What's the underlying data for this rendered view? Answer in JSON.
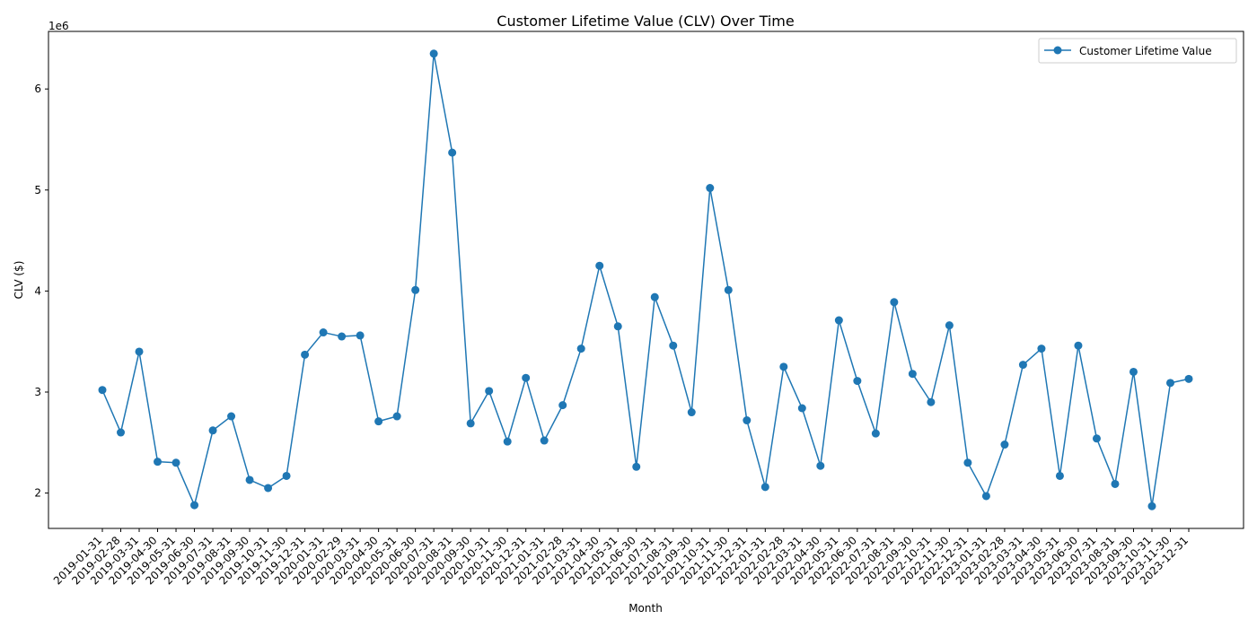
{
  "chart_data": {
    "type": "line",
    "title": "Customer Lifetime Value (CLV) Over Time",
    "xlabel": "Month",
    "ylabel": "CLV ($)",
    "y_offset_label": "1e6",
    "y_scale": 1000000,
    "ylim": [
      1650000,
      6570000
    ],
    "yticks": [
      2000000,
      3000000,
      4000000,
      5000000,
      6000000
    ],
    "ytick_labels": [
      "2",
      "3",
      "4",
      "5",
      "6"
    ],
    "grid": false,
    "legend_position": "top-right",
    "color": "#1f77b4",
    "series": [
      {
        "name": "Customer Lifetime Value",
        "x": [
          "2019-01-31",
          "2019-02-28",
          "2019-03-31",
          "2019-04-30",
          "2019-05-31",
          "2019-06-30",
          "2019-07-31",
          "2019-08-31",
          "2019-09-30",
          "2019-10-31",
          "2019-11-30",
          "2019-12-31",
          "2020-01-31",
          "2020-02-29",
          "2020-03-31",
          "2020-04-30",
          "2020-05-31",
          "2020-06-30",
          "2020-07-31",
          "2020-08-31",
          "2020-09-30",
          "2020-10-31",
          "2020-11-30",
          "2020-12-31",
          "2021-01-31",
          "2021-02-28",
          "2021-03-31",
          "2021-04-30",
          "2021-05-31",
          "2021-06-30",
          "2021-07-31",
          "2021-08-31",
          "2021-09-30",
          "2021-10-31",
          "2021-11-30",
          "2021-12-31",
          "2022-01-31",
          "2022-02-28",
          "2022-03-31",
          "2022-04-30",
          "2022-05-31",
          "2022-06-30",
          "2022-07-31",
          "2022-08-31",
          "2022-09-30",
          "2022-10-31",
          "2022-11-30",
          "2022-12-31",
          "2023-01-31",
          "2023-02-28",
          "2023-03-31",
          "2023-04-30",
          "2023-05-31",
          "2023-06-30",
          "2023-07-31",
          "2023-08-31",
          "2023-09-30",
          "2023-10-31",
          "2023-11-30",
          "2023-12-31"
        ],
        "values": [
          3020000,
          2600000,
          3400000,
          2310000,
          2300000,
          1880000,
          2620000,
          2760000,
          2130000,
          2050000,
          2170000,
          3370000,
          3590000,
          3550000,
          3560000,
          2710000,
          2760000,
          4010000,
          6350000,
          5370000,
          2690000,
          3010000,
          2510000,
          3140000,
          2520000,
          2870000,
          3430000,
          4250000,
          3650000,
          2260000,
          3940000,
          3460000,
          2800000,
          5020000,
          4010000,
          2720000,
          2060000,
          3250000,
          2840000,
          2270000,
          3710000,
          3110000,
          2590000,
          3890000,
          3180000,
          2900000,
          3660000,
          2300000,
          1970000,
          2480000,
          3270000,
          3430000,
          2170000,
          3460000,
          2540000,
          2090000,
          3200000,
          1870000,
          3090000,
          3130000
        ]
      }
    ]
  }
}
